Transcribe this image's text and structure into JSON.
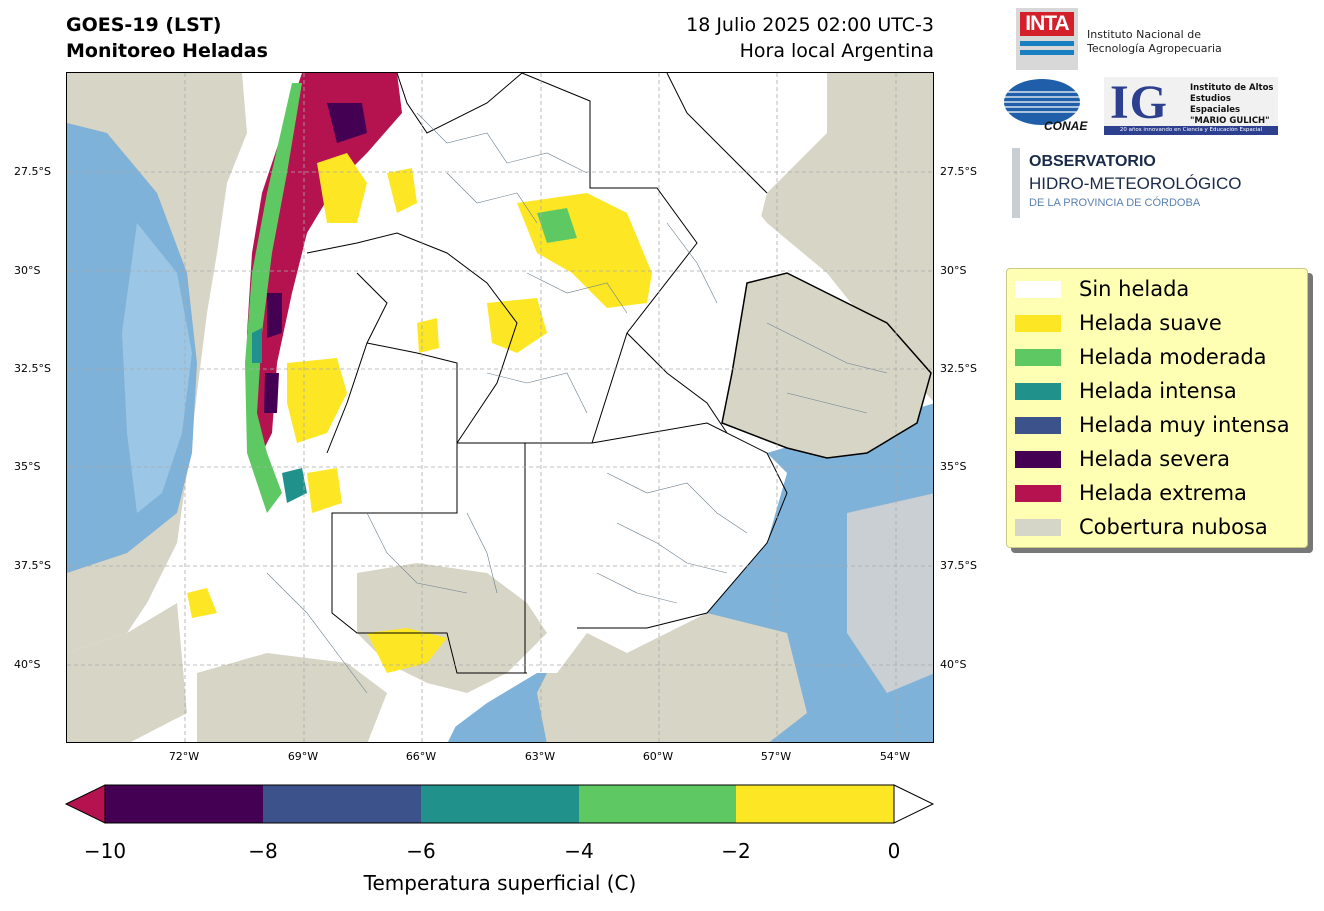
{
  "title": {
    "line1": "GOES-19 (LST)",
    "line2": "Monitoreo Heladas",
    "date": "18 Julio 2025 02:00 UTC-3",
    "local": "Hora local Argentina"
  },
  "map": {
    "lat_labels": [
      "27.5°S",
      "30°S",
      "32.5°S",
      "35°S",
      "37.5°S",
      "40°S"
    ],
    "lon_labels": [
      "72°W",
      "69°W",
      "66°W",
      "63°W",
      "60°W",
      "57°W",
      "54°W"
    ],
    "gridlines": true
  },
  "legend": {
    "items": [
      {
        "label": "Sin helada",
        "color": "#ffffff"
      },
      {
        "label": "Helada suave",
        "color": "#fde725"
      },
      {
        "label": "Helada moderada",
        "color": "#5ec962"
      },
      {
        "label": "Helada intensa",
        "color": "#21918c"
      },
      {
        "label": "Helada muy intensa",
        "color": "#3b528b"
      },
      {
        "label": "Helada severa",
        "color": "#440154"
      },
      {
        "label": "Helada extrema",
        "color": "#b5134f"
      },
      {
        "label": "Cobertura nubosa",
        "color": "#d6d6c8"
      }
    ]
  },
  "colorbar": {
    "label": "Temperatura superficial (C)",
    "ticks": [
      "−10",
      "−8",
      "−6",
      "−4",
      "−2",
      "0"
    ],
    "segments": [
      "#440154",
      "#3b528b",
      "#21918c",
      "#5ec962",
      "#fde725"
    ],
    "under_color": "#b5134f",
    "over_color": "#ffffff"
  },
  "logos": {
    "inta_mark": "INTA",
    "inta_text_1": "Instituto Nacional de",
    "inta_text_2": "Tecnología Agropecuaria",
    "conae": "CONAE",
    "ig_mark": "IG",
    "ig_text_1": "Instituto de Altos",
    "ig_text_2": "Estudios Espaciales",
    "ig_text_3": "\"MARIO GULICH\"",
    "ig_bar": "20 años innovando en Ciencia y Educación Espacial",
    "obs_1": "OBSERVATORIO",
    "obs_2": "HIDRO-METEOROLÓGICO",
    "obs_3": "DE LA PROVINCIA DE CÓRDOBA"
  }
}
